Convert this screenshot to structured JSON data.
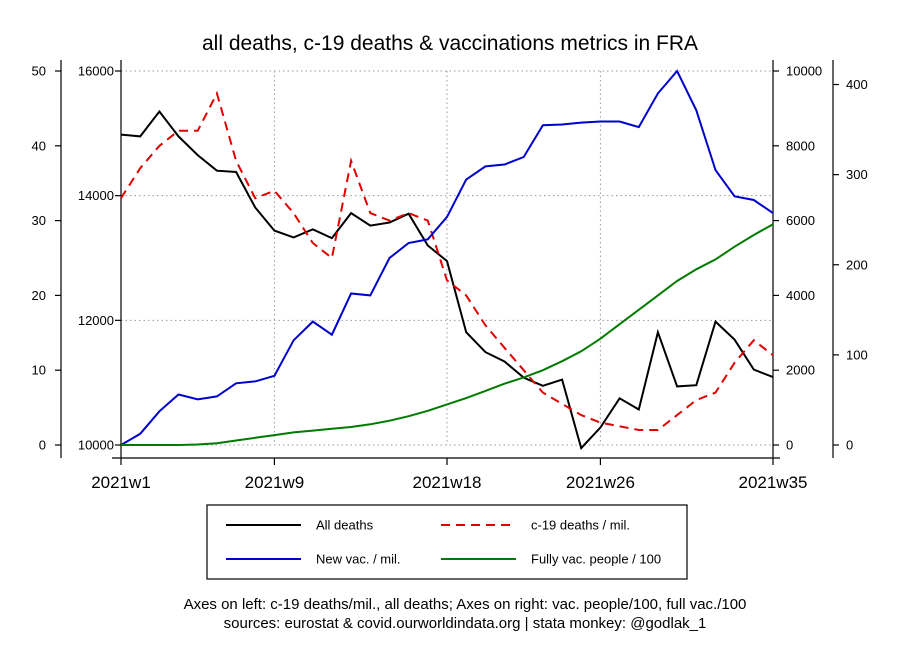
{
  "chart_data": {
    "type": "line",
    "title": "all deaths, c-19 deaths & vaccinations metrics in FRA",
    "x": [
      1,
      2,
      3,
      4,
      5,
      6,
      7,
      8,
      9,
      10,
      11,
      12,
      13,
      14,
      15,
      16,
      17,
      18,
      19,
      20,
      21,
      22,
      23,
      24,
      25,
      26,
      27,
      28,
      29,
      30,
      31,
      32,
      33,
      34,
      35
    ],
    "x_ticks": [
      {
        "x": 1,
        "label": "2021w1"
      },
      {
        "x": 9,
        "label": "2021w9"
      },
      {
        "x": 18,
        "label": "2021w18"
      },
      {
        "x": 26,
        "label": "2021w26"
      },
      {
        "x": 35,
        "label": "2021w35"
      }
    ],
    "xlim": [
      1,
      35
    ],
    "axes": {
      "left_outer": {
        "lim": [
          0,
          50
        ],
        "ticks": [
          "0",
          "10",
          "20",
          "30",
          "40",
          "50"
        ]
      },
      "left_inner": {
        "lim": [
          10000,
          16000
        ],
        "ticks": [
          "10000",
          "12000",
          "14000",
          "16000"
        ]
      },
      "right_inner": {
        "lim": [
          0,
          10000
        ],
        "ticks": [
          "0",
          "2000",
          "4000",
          "6000",
          "8000",
          "10000"
        ]
      },
      "right_outer": {
        "lim": [
          0,
          415
        ],
        "ticks": [
          "0",
          "100",
          "200",
          "300",
          "400"
        ]
      }
    },
    "grid": true,
    "series": [
      {
        "name": "All deaths",
        "axis": "left_inner",
        "color": "#000000",
        "dash": "none",
        "values": [
          14980,
          14950,
          15350,
          14950,
          14650,
          14400,
          14380,
          13810,
          13440,
          13330,
          13460,
          13320,
          13720,
          13520,
          13570,
          13710,
          13200,
          12950,
          11810,
          11490,
          11340,
          11080,
          10950,
          11050,
          9950,
          10280,
          10750,
          10570,
          11810,
          10940,
          10960,
          11980,
          11690,
          11210,
          11090
        ]
      },
      {
        "name": "c-19 deaths / mil.",
        "axis": "left_outer",
        "color": "#e00000",
        "dash": "9,6",
        "values": [
          33,
          37,
          40,
          42,
          42,
          47,
          38,
          33,
          34,
          31,
          27,
          25,
          38,
          31,
          30,
          31,
          30,
          22,
          20,
          16,
          13,
          10,
          7,
          5.5,
          4,
          3,
          2.5,
          2,
          2,
          4,
          6,
          7,
          11,
          14,
          12
        ]
      },
      {
        "name": "New vac. / mil.",
        "axis": "right_inner",
        "color": "#0000cc",
        "dash": "none",
        "values": [
          0,
          300,
          900,
          1350,
          1220,
          1300,
          1650,
          1700,
          1850,
          2800,
          3300,
          2950,
          4050,
          4000,
          5000,
          5400,
          5500,
          6100,
          7100,
          7450,
          7500,
          7700,
          8550,
          8570,
          8620,
          8650,
          8650,
          8500,
          9400,
          10000,
          8950,
          7350,
          6650,
          6550,
          6200
        ]
      },
      {
        "name": "Fully vac. people / 100",
        "axis": "right_outer",
        "color": "#007a00",
        "dash": "none",
        "values": [
          0,
          0,
          0,
          0,
          0.5,
          2,
          5,
          8,
          11,
          14,
          16,
          18,
          20,
          23,
          27,
          32,
          38,
          45,
          52,
          60,
          68,
          75,
          83,
          93,
          104,
          118,
          134,
          150,
          166,
          182,
          195,
          206,
          220,
          233,
          245
        ]
      }
    ]
  },
  "legend": {
    "items": [
      {
        "label": "All deaths",
        "color": "#000000",
        "dash": "none"
      },
      {
        "label": "c-19 deaths / mil.",
        "color": "#e00000",
        "dash": "9,6"
      },
      {
        "label": "New vac. / mil.",
        "color": "#0000cc",
        "dash": "none"
      },
      {
        "label": "Fully vac. people / 100",
        "color": "#007a00",
        "dash": "none"
      }
    ]
  },
  "notes": {
    "line1": "Axes on left: c-19 deaths/mil., all deaths; Axes on right: vac. people/100, full vac./100",
    "line2": "sources: eurostat & covid.ourworldindata.org | stata monkey: @godlak_1"
  }
}
